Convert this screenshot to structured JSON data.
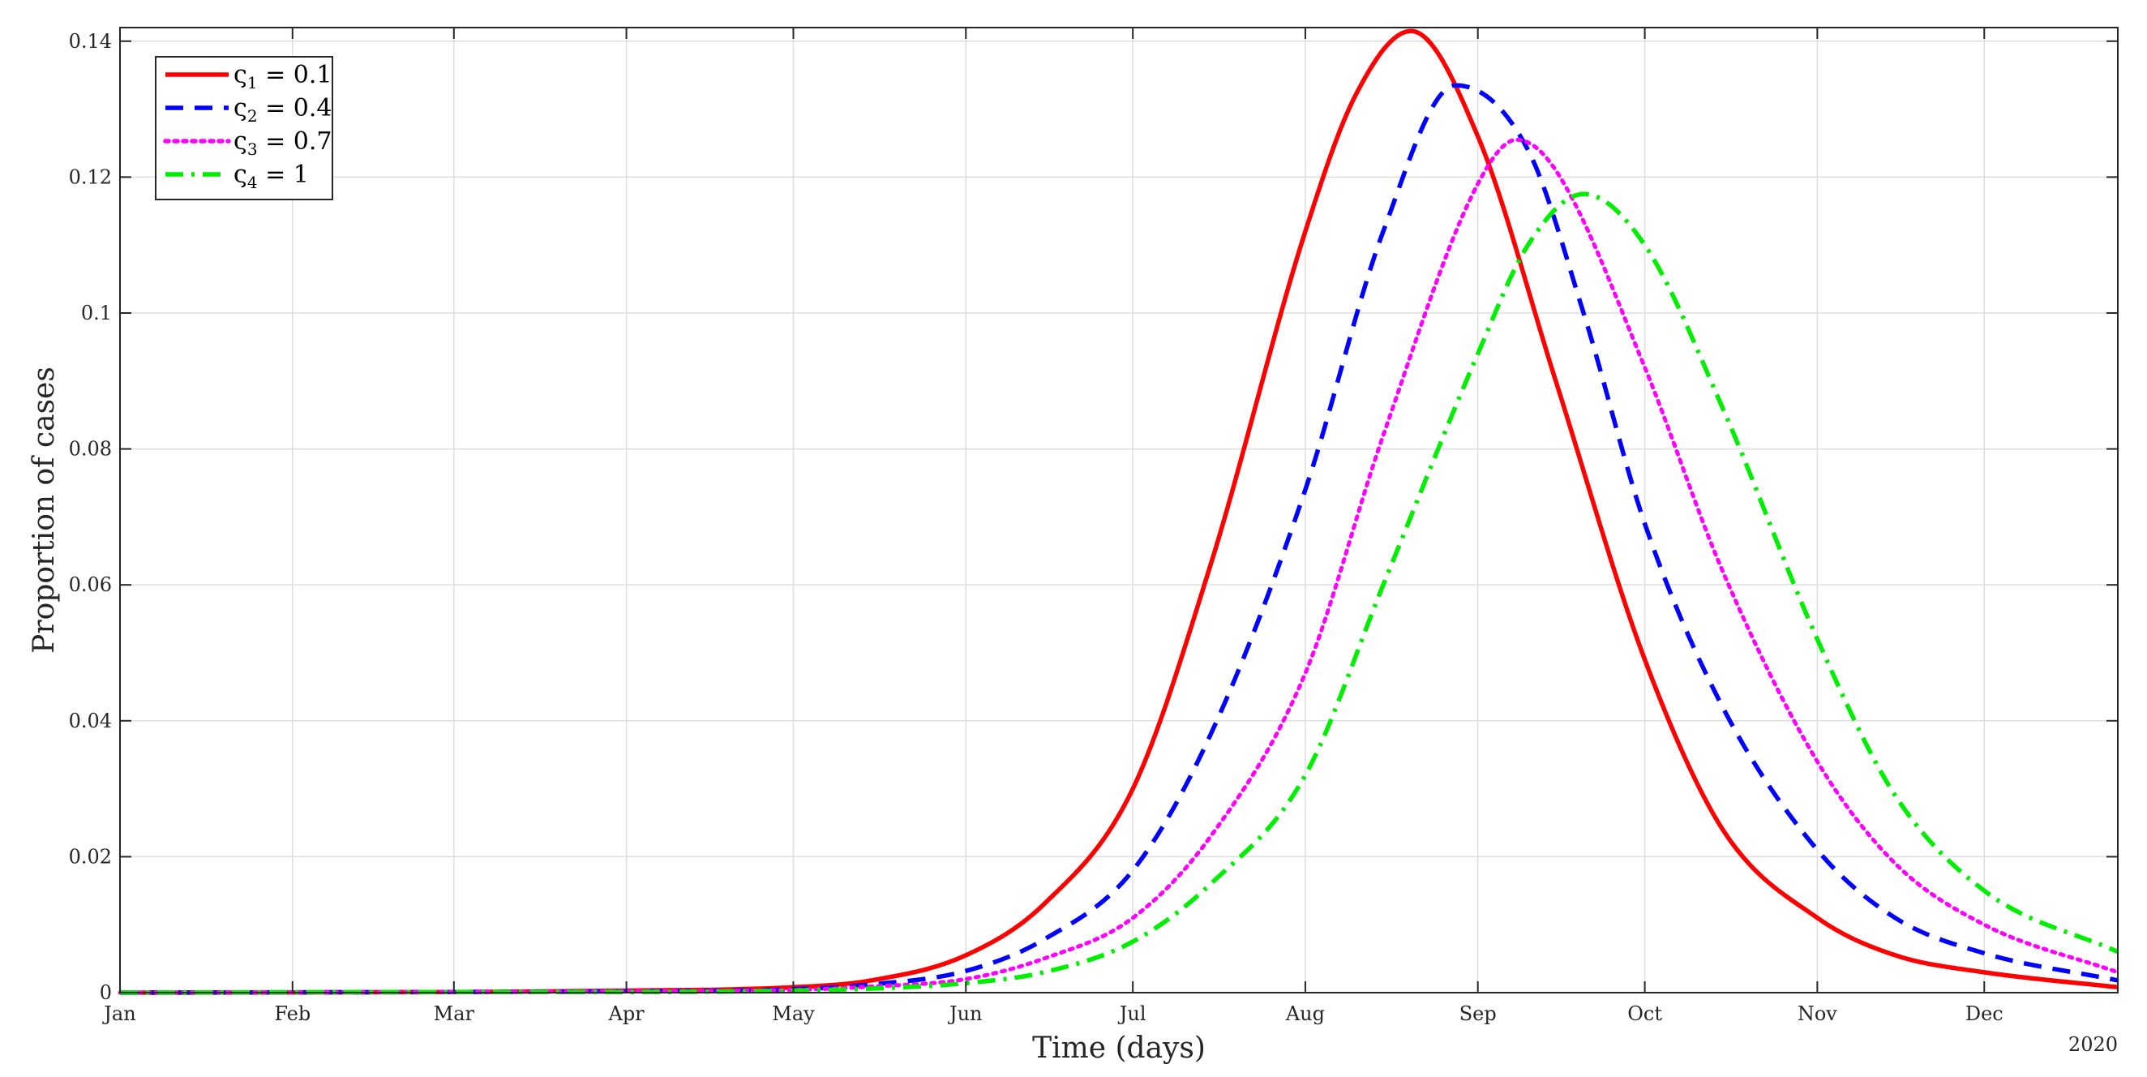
{
  "chart_data": {
    "type": "line",
    "title": "",
    "xlabel": "Time (days)",
    "ylabel": "Proportion of cases",
    "year_label": "2020",
    "x_tick_labels": [
      "Jan",
      "Feb",
      "Mar",
      "Apr",
      "May",
      "Jun",
      "Jul",
      "Aug",
      "Sep",
      "Oct",
      "Nov",
      "Dec"
    ],
    "y_tick_labels": [
      "0",
      "0.02",
      "0.04",
      "0.06",
      "0.08",
      "0.1",
      "0.12",
      "0.14"
    ],
    "ylim": [
      0,
      0.142
    ],
    "xlim": [
      "2020-01-01",
      "2020-12-25"
    ],
    "grid": true,
    "legend_position": "top-left",
    "series": [
      {
        "name": "ς1 = 0.1",
        "legend_symbol": "ς",
        "legend_sub": "1",
        "legend_rest": " = 0.1",
        "color": "#ff0000",
        "style": "solid",
        "x": [
          "2020-01-01",
          "2020-03-01",
          "2020-04-01",
          "2020-05-01",
          "2020-05-15",
          "2020-06-01",
          "2020-06-15",
          "2020-07-01",
          "2020-07-15",
          "2020-08-01",
          "2020-08-10",
          "2020-08-20",
          "2020-09-01",
          "2020-09-15",
          "2020-10-01",
          "2020-10-15",
          "2020-11-01",
          "2020-11-15",
          "2020-12-01",
          "2020-12-25"
        ],
        "y": [
          0.0,
          0.0001,
          0.0003,
          0.0008,
          0.0018,
          0.0055,
          0.013,
          0.03,
          0.063,
          0.112,
          0.132,
          0.1415,
          0.126,
          0.09,
          0.049,
          0.024,
          0.011,
          0.0055,
          0.003,
          0.0008
        ]
      },
      {
        "name": "ς2 = 0.4",
        "legend_symbol": "ς",
        "legend_sub": "2",
        "legend_rest": " = 0.4",
        "color": "#0000ff",
        "style": "dashed",
        "x": [
          "2020-01-01",
          "2020-03-01",
          "2020-04-01",
          "2020-05-01",
          "2020-05-15",
          "2020-06-01",
          "2020-06-15",
          "2020-07-01",
          "2020-07-15",
          "2020-08-01",
          "2020-08-15",
          "2020-08-28",
          "2020-09-10",
          "2020-09-20",
          "2020-10-01",
          "2020-10-15",
          "2020-11-01",
          "2020-11-15",
          "2020-12-01",
          "2020-12-25"
        ],
        "y": [
          0.0,
          0.0001,
          0.0002,
          0.0005,
          0.0012,
          0.0032,
          0.0078,
          0.018,
          0.038,
          0.074,
          0.112,
          0.1335,
          0.124,
          0.1,
          0.069,
          0.042,
          0.021,
          0.011,
          0.0058,
          0.0018
        ]
      },
      {
        "name": "ς3 = 0.7",
        "legend_symbol": "ς",
        "legend_sub": "3",
        "legend_rest": " = 0.7",
        "color": "#ff00ff",
        "style": "dotted",
        "x": [
          "2020-01-01",
          "2020-03-01",
          "2020-04-01",
          "2020-05-01",
          "2020-05-15",
          "2020-06-01",
          "2020-06-15",
          "2020-07-01",
          "2020-07-15",
          "2020-08-01",
          "2020-08-15",
          "2020-09-01",
          "2020-09-08",
          "2020-09-15",
          "2020-10-01",
          "2020-10-15",
          "2020-11-01",
          "2020-11-15",
          "2020-12-01",
          "2020-12-25"
        ],
        "y": [
          0.0,
          0.0001,
          0.0002,
          0.0004,
          0.0009,
          0.002,
          0.005,
          0.011,
          0.023,
          0.047,
          0.082,
          0.119,
          0.1255,
          0.121,
          0.092,
          0.062,
          0.034,
          0.019,
          0.01,
          0.003
        ]
      },
      {
        "name": "ς4 = 1",
        "legend_symbol": "ς",
        "legend_sub": "4",
        "legend_rest": " = 1",
        "color": "#00ee00",
        "style": "dashdot",
        "x": [
          "2020-01-01",
          "2020-03-01",
          "2020-04-01",
          "2020-05-01",
          "2020-05-15",
          "2020-06-01",
          "2020-06-15",
          "2020-07-01",
          "2020-07-15",
          "2020-08-01",
          "2020-08-15",
          "2020-09-01",
          "2020-09-10",
          "2020-09-20",
          "2020-10-01",
          "2020-10-15",
          "2020-11-01",
          "2020-11-15",
          "2020-12-01",
          "2020-12-25"
        ],
        "y": [
          0.0,
          0.0001,
          0.0001,
          0.0003,
          0.0006,
          0.0014,
          0.003,
          0.0075,
          0.016,
          0.032,
          0.06,
          0.094,
          0.11,
          0.1175,
          0.11,
          0.086,
          0.052,
          0.029,
          0.015,
          0.006
        ]
      }
    ]
  }
}
